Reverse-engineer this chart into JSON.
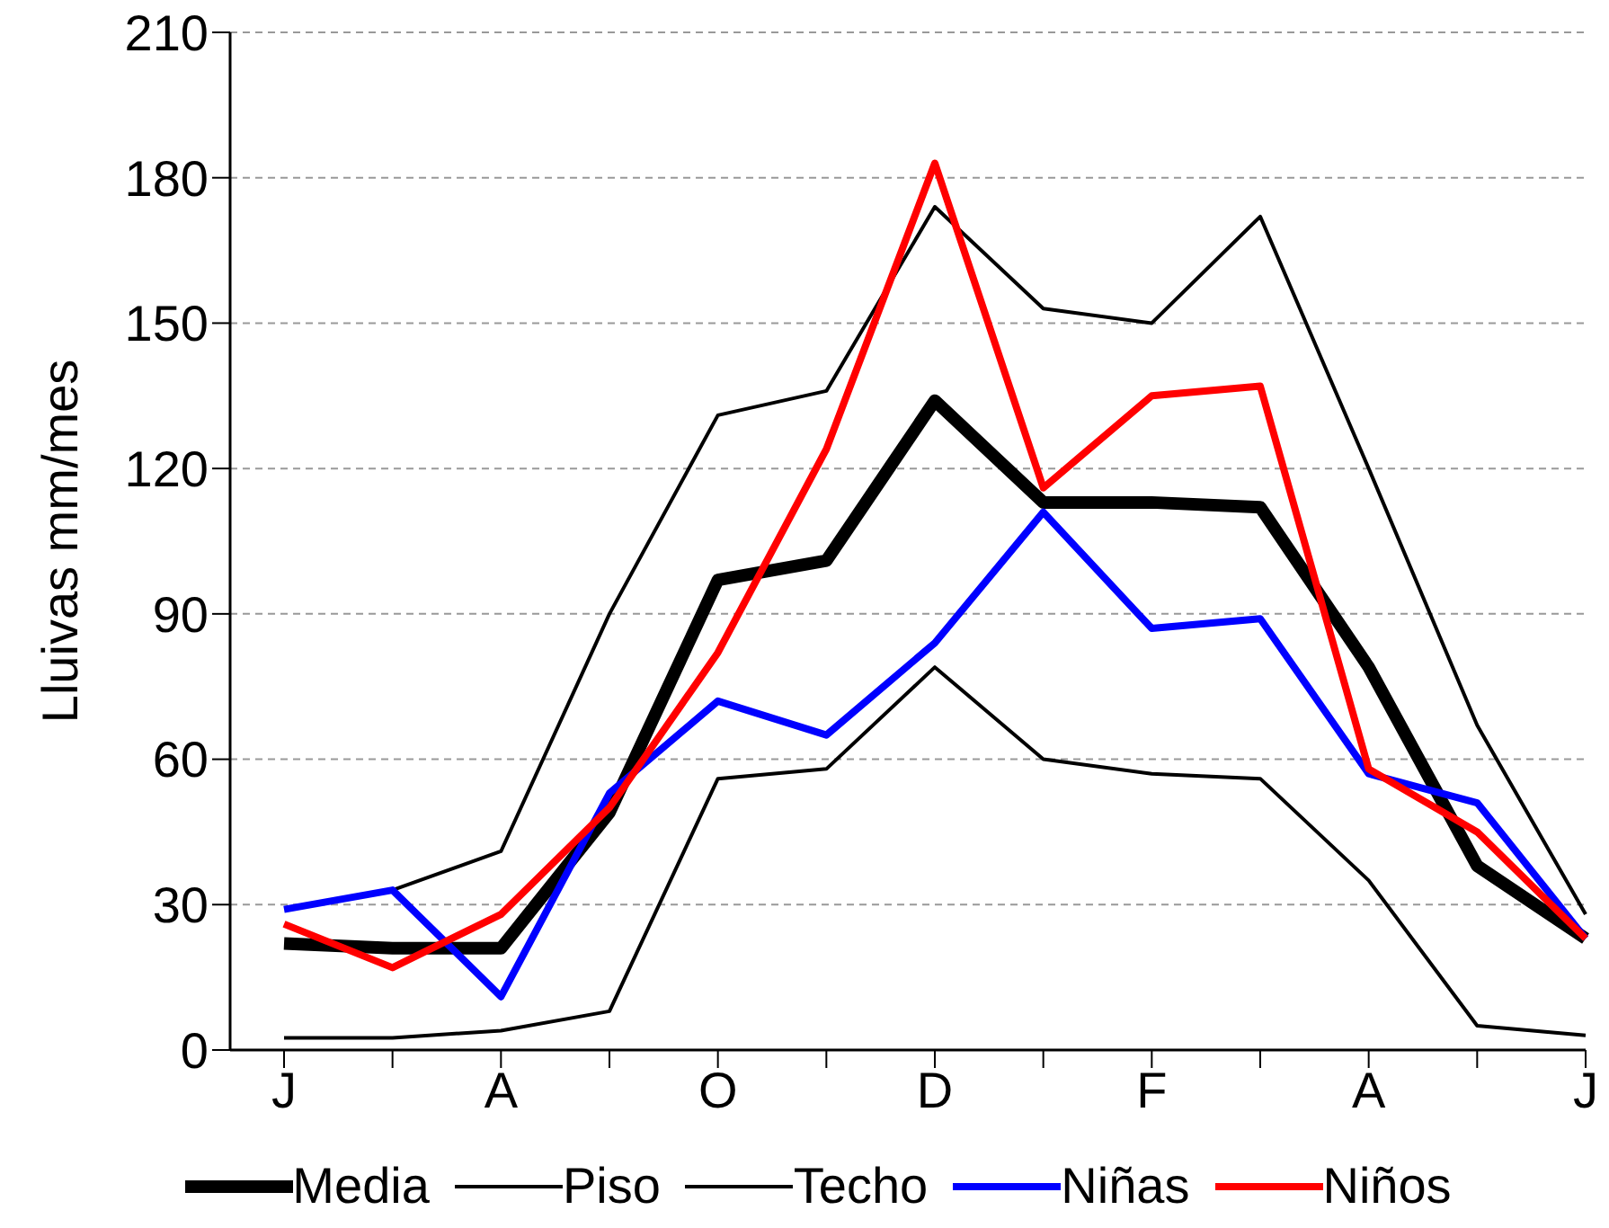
{
  "chart_data": {
    "type": "line",
    "ylabel": "Lluivas mm/mes",
    "categories": [
      "J",
      null,
      "A",
      null,
      "O",
      null,
      "D",
      null,
      "F",
      null,
      "A",
      null,
      "J"
    ],
    "series": [
      {
        "name": "Media",
        "color": "#000000",
        "values": [
          22,
          21,
          21,
          49,
          97,
          101,
          134,
          113,
          113,
          112,
          79,
          38,
          23
        ]
      },
      {
        "name": "Piso",
        "color": "#000000",
        "values": [
          2.5,
          2.5,
          4,
          8,
          56,
          58,
          79,
          60,
          57,
          56,
          35,
          5,
          3
        ]
      },
      {
        "name": "Techo",
        "color": "#000000",
        "values": [
          null,
          33,
          41,
          90,
          131,
          136,
          174,
          153,
          150,
          172,
          120,
          67,
          28
        ]
      },
      {
        "name": "Niñas",
        "color": "#0000ff",
        "values": [
          29,
          33,
          11,
          53,
          72,
          65,
          84,
          111,
          87,
          89,
          57,
          51,
          23
        ]
      },
      {
        "name": "Niños",
        "color": "#ff0000",
        "values": [
          26,
          17,
          28,
          50,
          82,
          124,
          183,
          116,
          135,
          137,
          58,
          45,
          23
        ]
      }
    ],
    "ylim": [
      0,
      210
    ],
    "yticks": [
      0,
      30,
      60,
      90,
      120,
      150,
      180,
      210
    ],
    "grid": "y",
    "legend": "bottom",
    "marker": "none",
    "line_style": "solid"
  }
}
